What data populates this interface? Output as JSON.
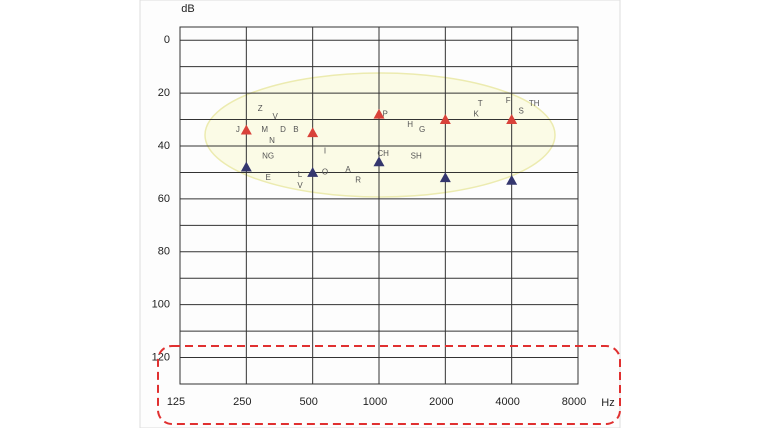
{
  "chart_data": {
    "type": "scatter",
    "y_label": "dB",
    "x_label": "Hz",
    "xlim": [
      125,
      8000
    ],
    "xticks": [
      125,
      250,
      500,
      1000,
      2000,
      4000,
      8000
    ],
    "xscale": "log",
    "ylim": [
      -5,
      130
    ],
    "yticks": [
      0,
      20,
      40,
      60,
      80,
      100,
      120
    ],
    "y_inverted": true,
    "y_gridlines": [
      0,
      10,
      20,
      30,
      40,
      50,
      60,
      70,
      80,
      90,
      100,
      110,
      120,
      130
    ],
    "grid": true,
    "series": [
      {
        "color": "#d9423a",
        "x": [
          250,
          500,
          1000,
          2000,
          4000
        ],
        "values": [
          34,
          35,
          28,
          30,
          30
        ]
      },
      {
        "color": "#34366e",
        "x": [
          250,
          500,
          1000,
          2000,
          4000
        ],
        "values": [
          48,
          50,
          46,
          52,
          53
        ]
      }
    ],
    "annotations": [
      {
        "text": "Z",
        "x": 289,
        "y": 26
      },
      {
        "text": "V",
        "x": 338,
        "y": 29
      },
      {
        "text": "J",
        "x": 229,
        "y": 34
      },
      {
        "text": "M",
        "x": 303,
        "y": 34
      },
      {
        "text": "D",
        "x": 367,
        "y": 34
      },
      {
        "text": "B",
        "x": 420,
        "y": 34
      },
      {
        "text": "N",
        "x": 327,
        "y": 38
      },
      {
        "text": "NG",
        "x": 314,
        "y": 44
      },
      {
        "text": "E",
        "x": 314,
        "y": 52
      },
      {
        "text": "L",
        "x": 438,
        "y": 51
      },
      {
        "text": "V",
        "x": 438,
        "y": 55
      },
      {
        "text": "I",
        "x": 569,
        "y": 42
      },
      {
        "text": "O",
        "x": 569,
        "y": 50
      },
      {
        "text": "A",
        "x": 724,
        "y": 49
      },
      {
        "text": "R",
        "x": 804,
        "y": 53
      },
      {
        "text": "P",
        "x": 1066,
        "y": 28
      },
      {
        "text": "H",
        "x": 1384,
        "y": 32
      },
      {
        "text": "G",
        "x": 1570,
        "y": 34
      },
      {
        "text": "CH",
        "x": 1044,
        "y": 43
      },
      {
        "text": "SH",
        "x": 1475,
        "y": 44
      },
      {
        "text": "K",
        "x": 2761,
        "y": 28
      },
      {
        "text": "T",
        "x": 2878,
        "y": 24
      },
      {
        "text": "F",
        "x": 3856,
        "y": 23
      },
      {
        "text": "S",
        "x": 4419,
        "y": 27
      },
      {
        "text": "TH",
        "x": 5063,
        "y": 24
      }
    ]
  }
}
